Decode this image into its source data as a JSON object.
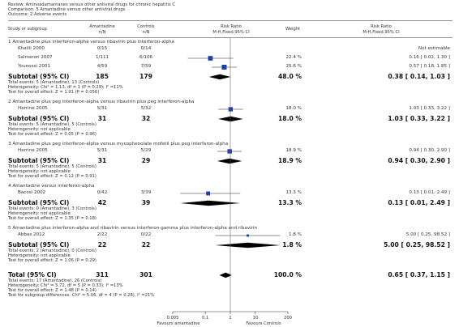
{
  "review": {
    "line1": "Review:  Aminoadamantanes versus other antiviral drugs for chronic hepatitis C",
    "line2": "Comparison:  5 Amantadine versus other antiviral drugs",
    "line3": "Outcome:  2 Adverse events"
  },
  "headers": {
    "study": "Study or subgroup",
    "exp": "Amantadine",
    "exp_n": "n/N",
    "ctl": "Controls",
    "ctl_n": "n/N",
    "rr": "Risk Ratio",
    "rr_method": "M-H,Fixed,95% CI",
    "weight": "Weight",
    "rr2": "Risk Ratio",
    "rr2_method": "M-H,Fixed,95% CI"
  },
  "footer": {
    "favours_left": "Favours amantadine",
    "favours_right": "Favours Controls"
  },
  "chart_data": {
    "type": "forest",
    "scale": "log",
    "xlim": [
      0.005,
      200
    ],
    "ticks": [
      {
        "value": 0.005,
        "label": "0.005"
      },
      {
        "value": 0.1,
        "label": "0.1"
      },
      {
        "value": 1,
        "label": "1"
      },
      {
        "value": 10,
        "label": "10"
      },
      {
        "value": 200,
        "label": "200"
      }
    ],
    "subgroups": [
      {
        "title": "1 Amantadine plus interferon-alpha versus ribavirin plus interferon-alpha",
        "studies": [
          {
            "name": "Khalili 2000",
            "exp": "0/15",
            "ctl": "0/14",
            "weight": "",
            "rr_text": "Not estimable",
            "rr": null,
            "lo": null,
            "hi": null
          },
          {
            "name": "Salmeron 2007",
            "exp": "1/111",
            "ctl": "6/106",
            "weight": "22.4 %",
            "rr_text": "0.16 [ 0.02, 1.30 ]",
            "rr": 0.16,
            "lo": 0.02,
            "hi": 1.3
          },
          {
            "name": "Younossi 2001",
            "exp": "4/59",
            "ctl": "7/59",
            "weight": "25.6 %",
            "rr_text": "0.57 [ 0.18, 1.85 ]",
            "rr": 0.57,
            "lo": 0.18,
            "hi": 1.85
          }
        ],
        "subtotal": {
          "label": "Subtotal (95% CI)",
          "exp": "185",
          "ctl": "179",
          "weight": "48.0 %",
          "rr_text": "0.38 [ 0.14, 1.03 ]",
          "rr": 0.38,
          "lo": 0.14,
          "hi": 1.03
        },
        "notes": [
          "Total events: 5 (Amantadine), 13 (Controls)",
          "Heterogeneity: Chi² = 1.13, df = 1 (P = 0.29); I² =11%",
          "Test for overall effect: Z = 1.91 (P = 0.056)"
        ]
      },
      {
        "title": "2 Amantadine plus peg interferon-alpha versus ribavirin plus peg interferon-alpha",
        "studies": [
          {
            "name": "Herrine 2005",
            "exp": "5/31",
            "ctl": "5/32",
            "weight": "18.0 %",
            "rr_text": "1.03 [ 0.33, 3.22 ]",
            "rr": 1.03,
            "lo": 0.33,
            "hi": 3.22
          }
        ],
        "subtotal": {
          "label": "Subtotal (95% CI)",
          "exp": "31",
          "ctl": "32",
          "weight": "18.0 %",
          "rr_text": "1.03 [ 0.33, 3.22 ]",
          "rr": 1.03,
          "lo": 0.33,
          "hi": 3.22
        },
        "notes": [
          "Total events: 5 (Amantadine), 5 (Controls)",
          "Heterogeneity: not applicable",
          "Test for overall effect: Z = 0.05 (P = 0.96)"
        ]
      },
      {
        "title": "3 Amantadine plus peg interferon-alpha versus mycophenolate mofetil plus peg interferon-alpha",
        "studies": [
          {
            "name": "Herrine 2005",
            "exp": "5/31",
            "ctl": "5/29",
            "weight": "18.9 %",
            "rr_text": "0.94 [ 0.30, 2.90 ]",
            "rr": 0.94,
            "lo": 0.3,
            "hi": 2.9
          }
        ],
        "subtotal": {
          "label": "Subtotal (95% CI)",
          "exp": "31",
          "ctl": "29",
          "weight": "18.9 %",
          "rr_text": "0.94 [ 0.30, 2.90 ]",
          "rr": 0.94,
          "lo": 0.3,
          "hi": 2.9
        },
        "notes": [
          "Total events: 5 (Amantadine), 5 (Controls)",
          "Heterogeneity: not applicable",
          "Test for overall effect: Z = 0.12 (P = 0.91)"
        ]
      },
      {
        "title": "4 Amantadine versus interferon-alpha",
        "studies": [
          {
            "name": "Bacosi 2002",
            "exp": "0/42",
            "ctl": "3/39",
            "weight": "13.3 %",
            "rr_text": "0.13 [ 0.01, 2.49 ]",
            "rr": 0.13,
            "lo": 0.01,
            "hi": 2.49
          }
        ],
        "subtotal": {
          "label": "Subtotal (95% CI)",
          "exp": "42",
          "ctl": "39",
          "weight": "13.3 %",
          "rr_text": "0.13 [ 0.01, 2.49 ]",
          "rr": 0.13,
          "lo": 0.01,
          "hi": 2.49
        },
        "notes": [
          "Total events: 0 (Amantadine), 3 (Controls)",
          "Heterogeneity: not applicable",
          "Test for overall effect: Z = 1.35 (P = 0.18)"
        ]
      },
      {
        "title": "5 Amantadine plus interferon-alpha and ribavirin versus interferon-gamma plus interferon-alpha and ribavirin",
        "studies": [
          {
            "name": "Abbas 2012",
            "exp": "2/22",
            "ctl": "0/22",
            "weight": "1.8 %",
            "rr_text": "5.00 [ 0.25, 98.52 ]",
            "rr": 5.0,
            "lo": 0.25,
            "hi": 98.52
          }
        ],
        "subtotal": {
          "label": "Subtotal (95% CI)",
          "exp": "22",
          "ctl": "22",
          "weight": "1.8 %",
          "rr_text": "5.00 [ 0.25, 98.52 ]",
          "rr": 5.0,
          "lo": 0.25,
          "hi": 98.52
        },
        "notes": [
          "Total events: 2 (Amantadine), 0 (Controls)",
          "Heterogeneity: not applicable",
          "Test for overall effect: Z = 1.06 (P = 0.29)"
        ]
      }
    ],
    "total": {
      "label": "Total (95% CI)",
      "exp": "311",
      "ctl": "301",
      "weight": "100.0 %",
      "rr_text": "0.65 [ 0.37, 1.15 ]",
      "rr": 0.65,
      "lo": 0.37,
      "hi": 1.15
    },
    "total_notes": [
      "Total events: 17 (Amantadine), 26 (Controls)",
      "Heterogeneity: Chi² = 5.72, df = 5 (P = 0.33); I² =13%",
      "Test for overall effect: Z = 1.48 (P = 0.14)",
      "Test for subgroup differences: Chi² = 5.06, df = 4 (P = 0.28), I² =21%"
    ]
  }
}
